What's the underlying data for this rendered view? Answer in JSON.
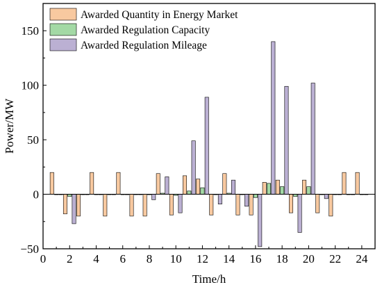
{
  "chart_data": {
    "type": "bar",
    "xlabel": "Time/h",
    "ylabel": "Power/MW",
    "xlim": [
      0,
      25
    ],
    "ylim": [
      -50,
      175
    ],
    "x_ticks": [
      0,
      2,
      4,
      6,
      8,
      10,
      12,
      14,
      16,
      18,
      20,
      22,
      24
    ],
    "y_ticks": [
      -50,
      0,
      50,
      100,
      150
    ],
    "x": [
      1,
      2,
      3,
      4,
      5,
      6,
      7,
      8,
      9,
      10,
      11,
      12,
      13,
      14,
      15,
      16,
      17,
      18,
      19,
      20,
      21,
      22,
      23,
      24
    ],
    "legend_position": "top-left",
    "series": [
      {
        "name": "Awarded Quantity in Energy Market",
        "color": "#f8c9a0",
        "values": [
          20,
          -18,
          -20,
          20,
          -20,
          20,
          -20,
          -20,
          19,
          -19,
          17,
          14,
          -19,
          19,
          -19,
          -19,
          11,
          13,
          -17,
          13,
          -17,
          -20,
          20,
          20
        ]
      },
      {
        "name": "Awarded Regulation Capacity",
        "color": "#a3d9a5",
        "values": [
          0,
          -2,
          0,
          0,
          0,
          0,
          0,
          0,
          1,
          -1,
          3,
          6,
          0,
          1,
          0,
          -3,
          10,
          7,
          -2,
          7,
          0,
          0,
          0,
          0
        ]
      },
      {
        "name": "Awarded Regulation Mileage",
        "color": "#bbb0d3",
        "values": [
          0,
          -27,
          0,
          0,
          0,
          0,
          0,
          -5,
          16,
          -17,
          49,
          89,
          -9,
          13,
          -11,
          -48,
          140,
          99,
          -35,
          102,
          -4,
          0,
          0,
          0
        ]
      }
    ]
  }
}
